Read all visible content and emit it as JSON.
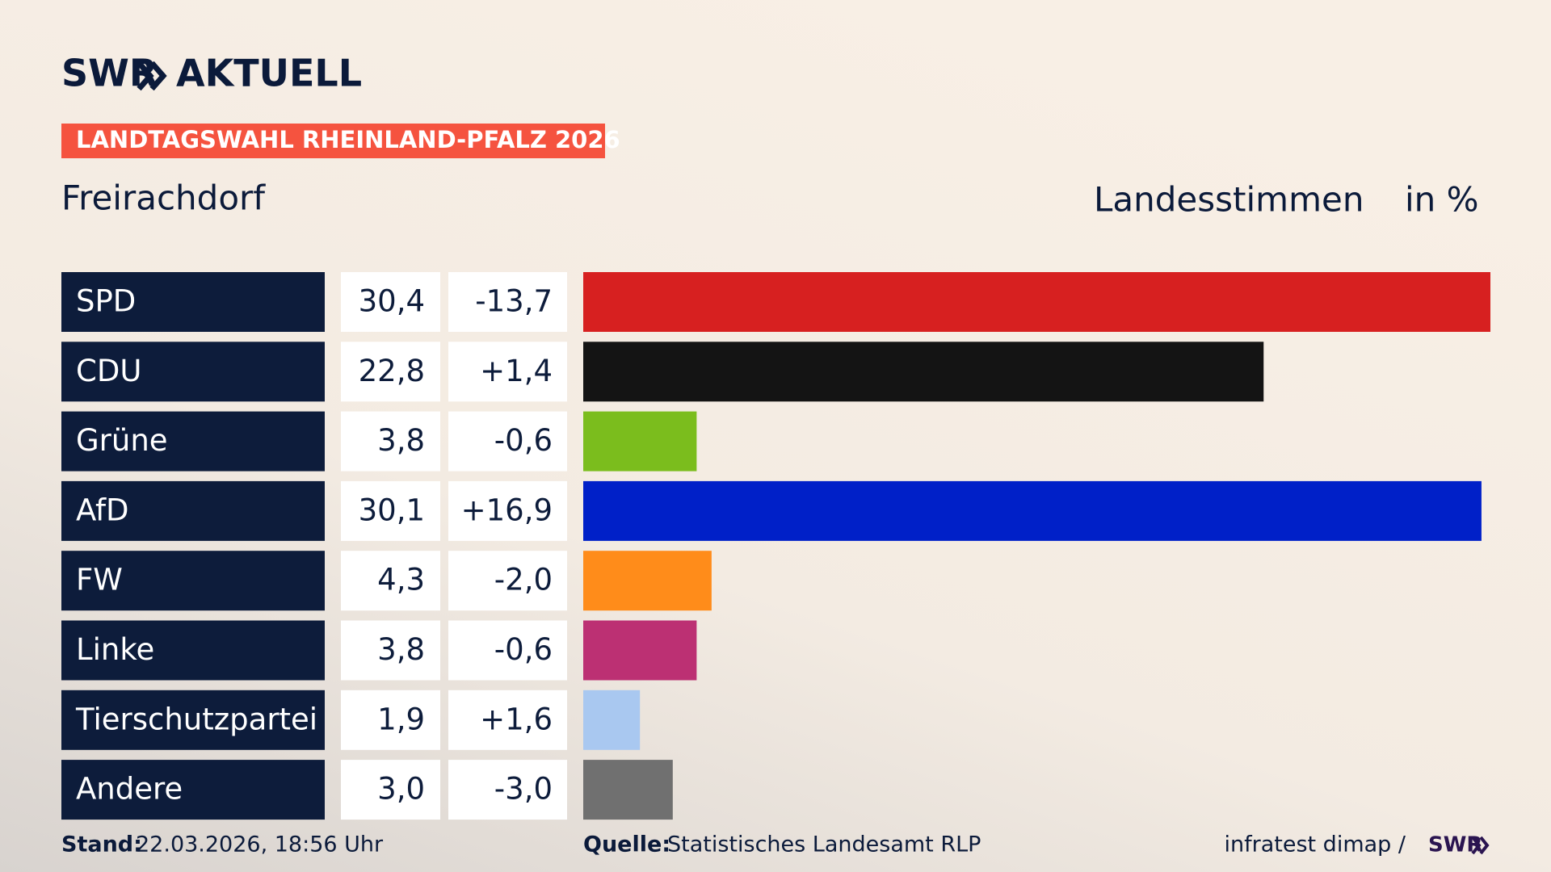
{
  "header": {
    "brand": "SWR",
    "brand_suffix": "AKTUELL",
    "badge": "LANDTAGSWAHL RHEINLAND-PFALZ 2026"
  },
  "chart_data": {
    "type": "bar",
    "title": "Freirachdorf",
    "subtitle": "Landesstimmen",
    "unit": "in %",
    "categories": [
      "SPD",
      "CDU",
      "Grüne",
      "AfD",
      "FW",
      "Linke",
      "Tierschutzpartei",
      "Andere"
    ],
    "values": [
      30.4,
      22.8,
      3.8,
      30.1,
      4.3,
      3.8,
      1.9,
      3.0
    ],
    "value_labels": [
      "30,4",
      "22,8",
      "3,8",
      "30,1",
      "4,3",
      "3,8",
      "1,9",
      "3,0"
    ],
    "changes": [
      -13.7,
      1.4,
      -0.6,
      16.9,
      -2.0,
      -0.6,
      1.6,
      -3.0
    ],
    "change_labels": [
      "-13,7",
      "+1,4",
      "-0,6",
      "+16,9",
      "-2,0",
      "-0,6",
      "+1,6",
      "-3,0"
    ],
    "colors": [
      "#d72020",
      "#141414",
      "#7bbd1d",
      "#0020c8",
      "#ff8c1a",
      "#bc3073",
      "#a9c8f0",
      "#707070"
    ]
  },
  "footer": {
    "stand_label": "Stand:",
    "stand": "22.03.2026, 18:56 Uhr",
    "source_label": "Quelle:",
    "source": "Statistisches Landesamt RLP",
    "credit": "infratest dimap /",
    "credit_brand": "SWR"
  }
}
